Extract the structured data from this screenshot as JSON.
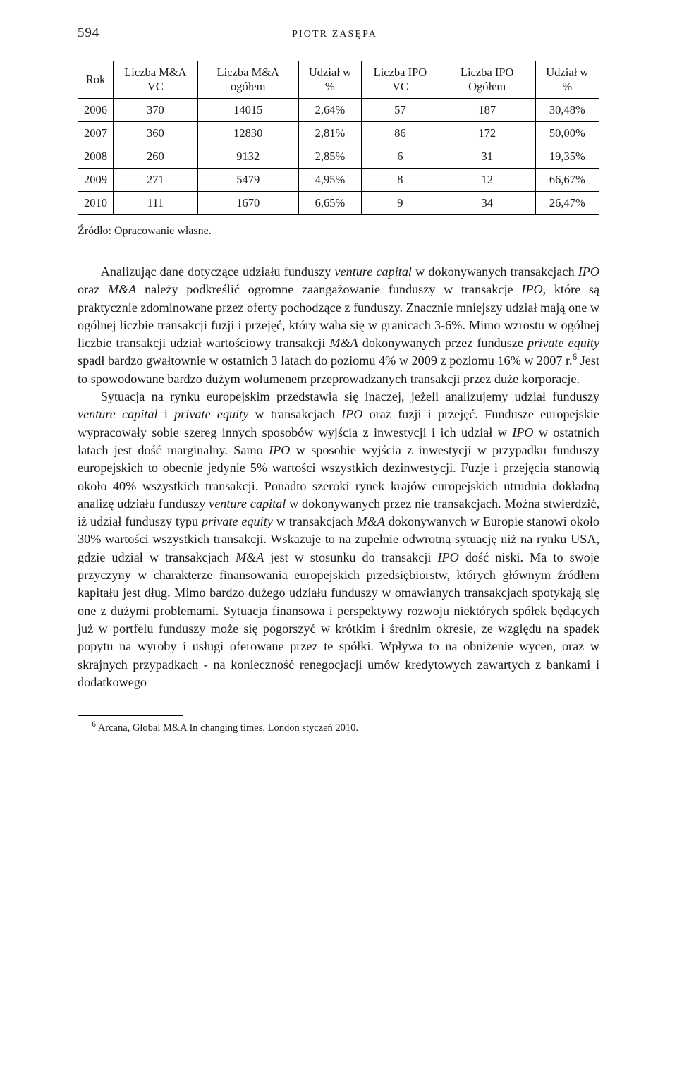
{
  "page_number": "594",
  "running_author": "PIOTR ZASĘPA",
  "table": {
    "columns": [
      "Rok",
      "Liczba M&A VC",
      "Liczba M&A ogółem",
      "Udział w %",
      "Liczba IPO VC",
      "Liczba IPO Ogółem",
      "Udział w %"
    ],
    "rows": [
      [
        "2006",
        "370",
        "14015",
        "2,64%",
        "57",
        "187",
        "30,48%"
      ],
      [
        "2007",
        "360",
        "12830",
        "2,81%",
        "86",
        "172",
        "50,00%"
      ],
      [
        "2008",
        "260",
        "9132",
        "2,85%",
        "6",
        "31",
        "19,35%"
      ],
      [
        "2009",
        "271",
        "5479",
        "4,95%",
        "8",
        "12",
        "66,67%"
      ],
      [
        "2010",
        "111",
        "1670",
        "6,65%",
        "9",
        "34",
        "26,47%"
      ]
    ]
  },
  "source_line": "Źródło: Opracowanie własne.",
  "para1_a": "Analizując dane dotyczące udziału funduszy ",
  "para1_i1": "venture capital",
  "para1_b": " w dokonywanych transakcjach ",
  "para1_i2": "IPO",
  "para1_c": " oraz ",
  "para1_i3": "M&A",
  "para1_d": " należy podkreślić ogromne zaangażowanie funduszy w transakcje ",
  "para1_i4": "IPO",
  "para1_e": ", które są praktycznie zdominowane przez oferty pochodzące z fun­duszy. Znacznie mniejszy udział mają one w ogólnej liczbie transakcji fuzji i przejęć, który waha się w granicach 3-6%. Mimo wzrostu w ogólnej liczbie transakcji udział wartościowy transakcji ",
  "para1_i5": "M&A",
  "para1_f": " dokonywanych przez fundusze ",
  "para1_i6": "private equity",
  "para1_g": " spadł bardzo gwałtownie w ostatnich 3 latach do poziomu 4% w 2009 z poziomu 16% w 2007 r.",
  "para1_fnmark": "6",
  "para1_h": " Jest to spowodowane bardzo dużym wolumenem przeprowadzanych transakcji przez duże korporacje.",
  "para2_a": "Sytuacja na rynku europejskim przedstawia się inaczej, jeżeli analizujemy udział funduszy ",
  "para2_i1": "venture capital",
  "para2_b": " i ",
  "para2_i2": "private equity",
  "para2_c": " w transakcjach ",
  "para2_i3": "IPO",
  "para2_d": " oraz fuzji i przejęć. Fun­dusze europejskie wypracowały sobie szereg innych sposobów wyjścia z inwestycji i ich udział w ",
  "para2_i4": "IPO",
  "para2_e": " w ostatnich latach jest dość marginalny. Samo ",
  "para2_i5": "IPO",
  "para2_f": " w sposobie wyjścia z inwestycji w przypadku funduszy europejskich to obecnie jedynie 5% wartości wszyst­kich dezinwestycji. Fuzje i przejęcia stanowią około 40% wszystkich transakcji. Ponadto szeroki rynek krajów europejskich utrudnia dokładną analizę udziału funduszy ",
  "para2_i6": "venture capital",
  "para2_g": " w dokonywanych przez nie transakcjach. Można stwierdzić, iż udział funduszy typu ",
  "para2_i7": "private equity",
  "para2_h": " w transakcjach ",
  "para2_i8": "M&A",
  "para2_j": " dokonywanych w Europie stanowi około 30% wartości wszystkich transakcji. Wskazuje to na zupełnie odwrotną sytuację niż na rynku USA, gdzie udział w transakcjach ",
  "para2_i9": "M&A",
  "para2_k": " jest w stosunku do transakcji ",
  "para2_i10": "IPO",
  "para2_l": " dość niski. Ma to swoje przyczyny w charakterze finansowania europejskich przedsiębiorstw, których głównym źródłem kapitału jest dług. Mimo bardzo dużego udziału funduszy w omawianych transakcjach spotykają się one z dużymi problemami. Sytuacja finansowa i perspektywy rozwoju niektórych spółek będących już w portfelu funduszy może się pogorszyć w krótkim i średnim okresie, ze względu na spadek popytu na wyroby i usługi oferowane przez te spółki. Wpływa to na obniżenie wycen, oraz w skrajnych przypadkach - na konieczność renegocjacji umów kredytowych zawartych z bankami i dodatkowego",
  "footnote_mark": "6",
  "footnote_text": " Arcana, Global M&A In changing times, London styczeń 2010."
}
